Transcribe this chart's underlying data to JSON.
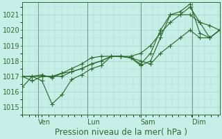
{
  "background_color": "#c8eee8",
  "grid_color": "#a8d8cc",
  "line_color": "#2d6b2d",
  "marker_color": "#2d6b2d",
  "vline_color": "#7a9a8a",
  "spine_color": "#2d6b2d",
  "tick_color": "#2d6b2d",
  "ylim": [
    1014.5,
    1021.8
  ],
  "yticks": [
    1015,
    1016,
    1017,
    1018,
    1019,
    1020,
    1021
  ],
  "xlabel": "Pression niveau de la mer( hPa )",
  "xlabel_fontsize": 8.5,
  "tick_fontsize": 7,
  "xtick_labels": [
    "Ven",
    "Lun",
    "Sam",
    "Dim"
  ],
  "xtick_positions": [
    0.08,
    0.33,
    0.6,
    0.86
  ],
  "vline_positions": [
    0.08,
    0.33,
    0.6,
    0.86
  ],
  "series": [
    [
      1016.3,
      1017.0,
      1016.7,
      1015.2,
      1015.8,
      1016.8,
      1017.1,
      1017.5,
      1017.7,
      1018.3,
      1018.3,
      1018.2,
      1018.0,
      1017.8,
      1018.5,
      1019.0,
      1019.5,
      1020.0,
      1019.5,
      1019.5,
      1020.0
    ],
    [
      1017.0,
      1017.0,
      1017.0,
      1017.0,
      1017.2,
      1017.3,
      1017.5,
      1017.8,
      1018.0,
      1018.3,
      1018.3,
      1018.3,
      1018.5,
      1019.0,
      1019.8,
      1020.5,
      1021.0,
      1021.0,
      1020.5,
      1020.3,
      1020.0
    ],
    [
      1017.0,
      1017.0,
      1017.1,
      1016.9,
      1017.2,
      1017.5,
      1017.8,
      1018.2,
      1018.3,
      1018.3,
      1018.3,
      1018.2,
      1017.7,
      1018.0,
      1019.5,
      1021.0,
      1021.0,
      1021.5,
      1020.5,
      1019.5,
      1020.0
    ],
    [
      1017.0,
      1016.7,
      1017.0,
      1017.0,
      1017.0,
      1017.3,
      1017.5,
      1017.8,
      1018.0,
      1018.3,
      1018.3,
      1018.2,
      1017.8,
      1018.5,
      1020.0,
      1021.0,
      1021.2,
      1021.7,
      1019.8,
      1019.5,
      1020.0
    ]
  ],
  "n_points": 21,
  "marker_style": "P",
  "marker_size": 2.5,
  "line_width": 0.85
}
